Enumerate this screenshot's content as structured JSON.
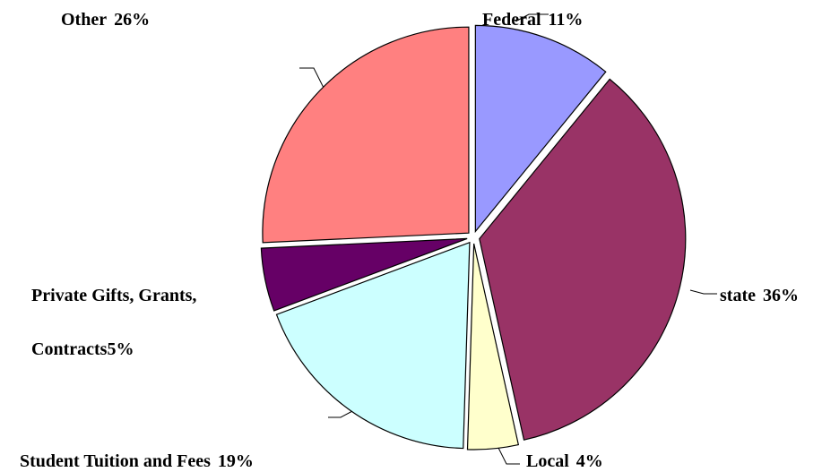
{
  "chart_data": {
    "type": "pie",
    "categories": [
      "Federal",
      "state",
      "Local",
      "Student Tuition and Fees",
      "Private Gifts, Grants, Contracts",
      "Other"
    ],
    "values": [
      11,
      36,
      4,
      19,
      5,
      26
    ],
    "value_labels": [
      "11%",
      "36%",
      "4%",
      "19%",
      "5%",
      "26%"
    ],
    "colors": [
      "#9999ff",
      "#993366",
      "#ffffcc",
      "#ccffff",
      "#660066",
      "#ff8080"
    ]
  }
}
